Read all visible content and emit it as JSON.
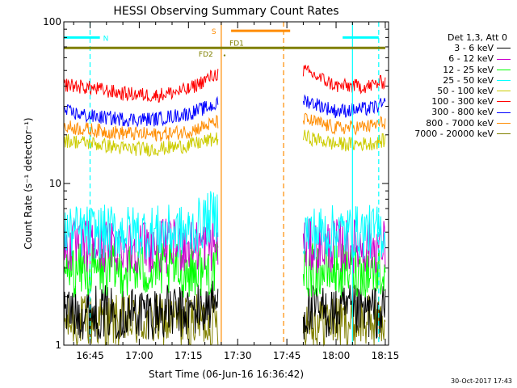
{
  "chart_data": {
    "type": "line",
    "title": "HESSI Observing Summary Count Rates",
    "xlabel": "Start Time (06-Jun-16 16:36:42)",
    "ylabel": "Count Rate (s⁻¹ detector⁻¹)",
    "yscale": "log",
    "ylim": [
      1,
      100
    ],
    "yticks": [
      "1",
      "10",
      "100"
    ],
    "xlim": [
      "16:37",
      "18:16"
    ],
    "xticks": [
      "16:45",
      "17:00",
      "17:15",
      "17:30",
      "17:45",
      "18:00",
      "18:15"
    ],
    "x": [
      "16:37",
      "16:45",
      "16:55",
      "17:05",
      "17:15",
      "17:24",
      "17:45",
      "17:50",
      "18:00",
      "18:10",
      "18:15"
    ],
    "series": [
      {
        "name": "3 - 6 keV",
        "color": "#000000",
        "values": [
          1.6,
          1.6,
          1.6,
          1.6,
          1.6,
          1.8,
          null,
          1.6,
          1.6,
          1.6,
          1.6
        ]
      },
      {
        "name": "6 - 12 keV",
        "color": "#cc00cc",
        "values": [
          4.1,
          4.1,
          4.1,
          4.1,
          4.1,
          4.2,
          null,
          4.1,
          4.1,
          4.1,
          4.1
        ]
      },
      {
        "name": "12 - 25 keV",
        "color": "#00ff00",
        "values": [
          2.9,
          2.9,
          2.9,
          2.9,
          2.9,
          3.0,
          null,
          2.9,
          2.9,
          2.9,
          2.9
        ]
      },
      {
        "name": "25 - 50 keV",
        "color": "#00ffff",
        "values": [
          5.0,
          5.0,
          5.0,
          5.0,
          5.0,
          6.5,
          null,
          5.0,
          5.0,
          5.0,
          5.0
        ]
      },
      {
        "name": "50 - 100 keV",
        "color": "#cccc00",
        "values": [
          18.5,
          17.8,
          16.5,
          16.3,
          17.2,
          19.0,
          null,
          19.5,
          17.5,
          17.6,
          18.5
        ]
      },
      {
        "name": "100 - 300 keV",
        "color": "#ff0000",
        "values": [
          41,
          39,
          36,
          35,
          38,
          48,
          null,
          50,
          40,
          40,
          43
        ]
      },
      {
        "name": "300 - 800 keV",
        "color": "#0000ff",
        "values": [
          28,
          26,
          25,
          25,
          27,
          31,
          null,
          33,
          28,
          29,
          31
        ]
      },
      {
        "name": "800 - 7000 keV",
        "color": "#ff8c00",
        "values": [
          22.5,
          21.5,
          20.5,
          20,
          21,
          24,
          null,
          25,
          22,
          22.5,
          24
        ]
      },
      {
        "name": "7000 - 20000 keV",
        "color": "#808000",
        "values": [
          1.4,
          1.4,
          1.4,
          1.4,
          1.4,
          1.4,
          null,
          1.4,
          1.4,
          1.4,
          1.4
        ]
      }
    ],
    "grid": false,
    "legend": {
      "title": "Det 1,3, Att 0",
      "position": "right"
    },
    "annotations": [
      "N",
      "S",
      "FD1",
      "FD2"
    ],
    "vertical_markers": [
      {
        "time": "16:45",
        "color": "#00ffff",
        "style": "dashed"
      },
      {
        "time": "17:25",
        "color": "#ff8c00",
        "style": "solid"
      },
      {
        "time": "17:44",
        "color": "#ff8c00",
        "style": "dashed"
      },
      {
        "time": "18:05",
        "color": "#00ffff",
        "style": "solid"
      },
      {
        "time": "18:13",
        "color": "#00ffff",
        "style": "dashed"
      }
    ],
    "intervals": [
      {
        "label": "N",
        "start": "16:37",
        "end": "16:48",
        "color": "#00ffff",
        "level": 80
      },
      {
        "label": "N",
        "start": "18:02",
        "end": "18:13",
        "color": "#00ffff",
        "level": 80
      },
      {
        "label": "S",
        "start": "17:28",
        "end": "17:46",
        "color": "#ff8c00",
        "level": 88
      },
      {
        "label": "",
        "start": "16:37",
        "end": "18:15",
        "color": "#808000",
        "level": 69
      }
    ]
  },
  "footer": {
    "timestamp": "30-Oct-2017 17:43"
  }
}
